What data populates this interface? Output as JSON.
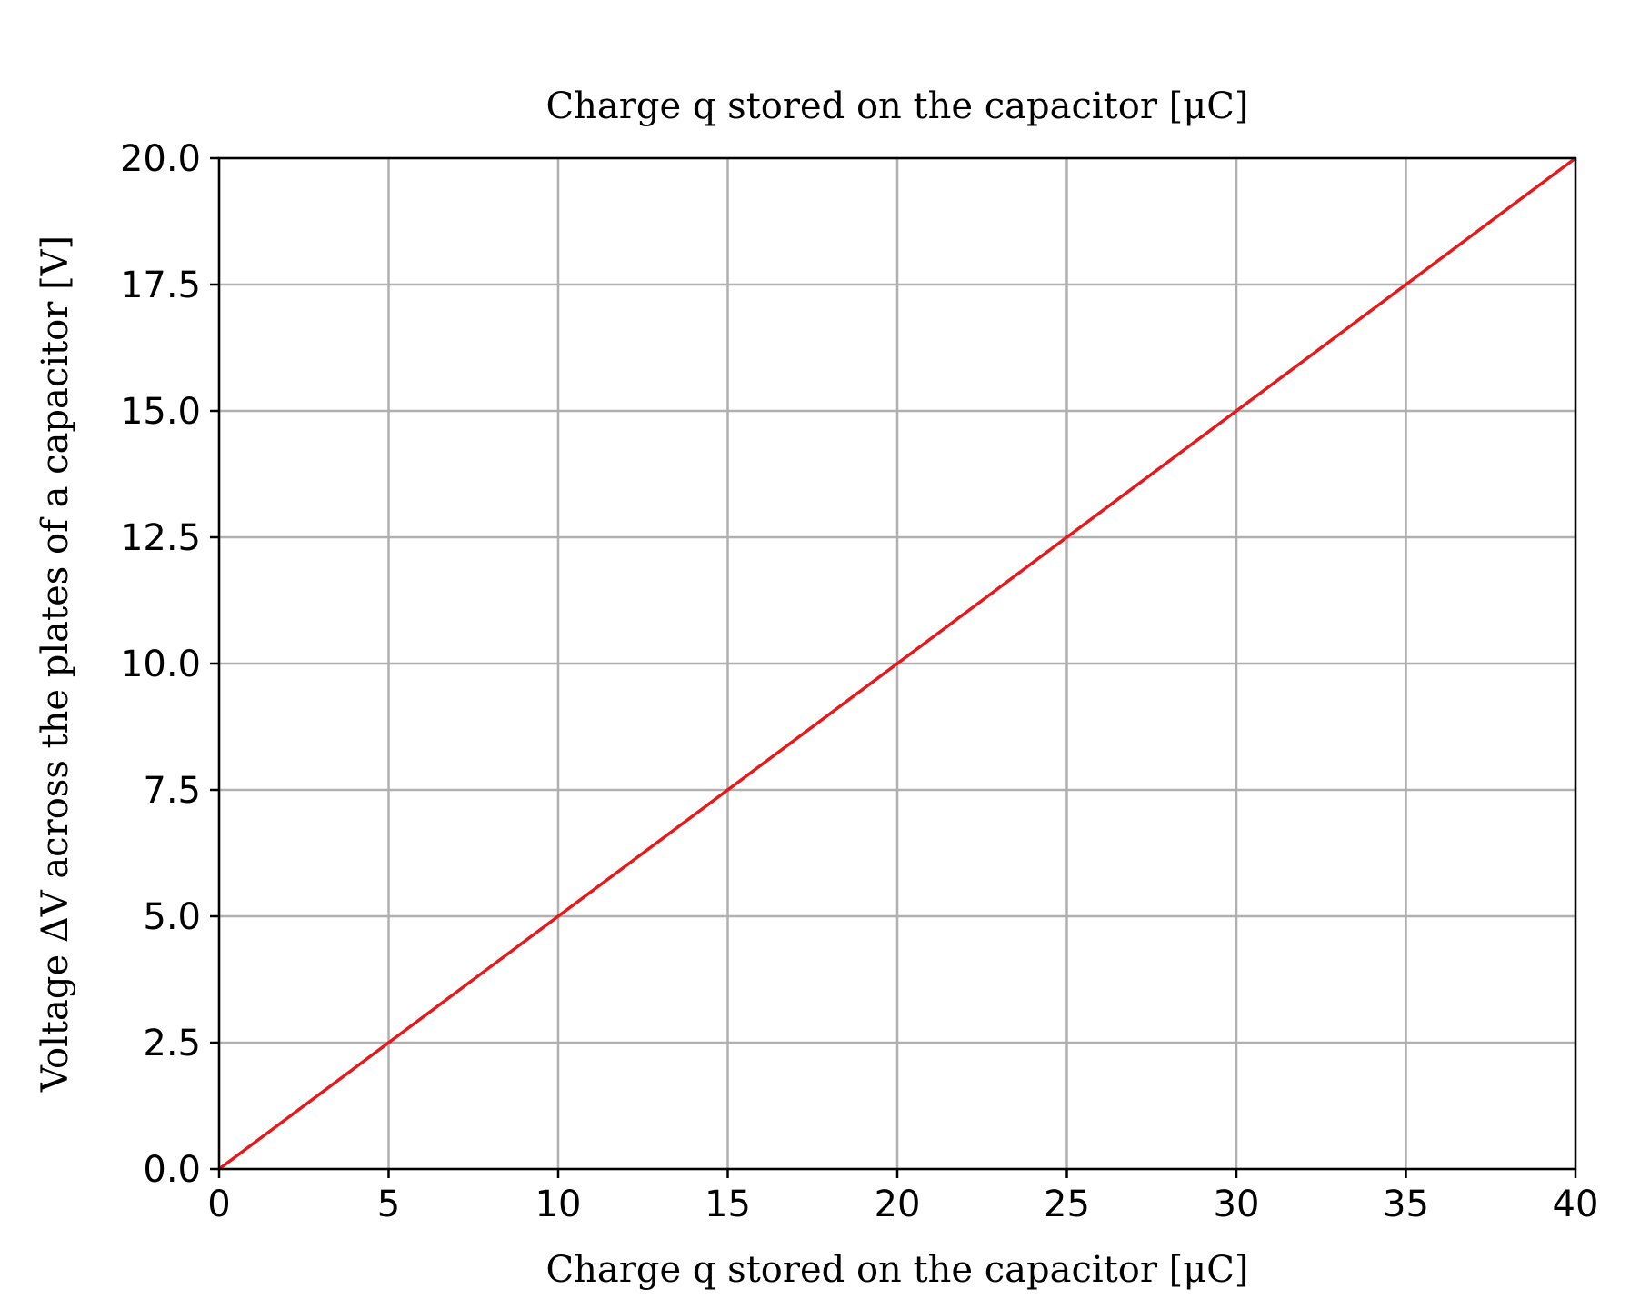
{
  "chart_data": {
    "type": "line",
    "title": "Charge q stored on the capacitor  [μC]",
    "xlabel": "Charge q stored on the capacitor  [μC]",
    "ylabel": "Voltage   ΔV  across the plates of a capacitor  [V]",
    "xlim": [
      0,
      40
    ],
    "ylim": [
      0,
      20
    ],
    "xticks": [
      "0",
      "5",
      "10",
      "15",
      "20",
      "25",
      "30",
      "35",
      "40"
    ],
    "yticks": [
      "0.0",
      "2.5",
      "5.0",
      "7.5",
      "10.0",
      "12.5",
      "15.0",
      "17.5",
      "20.0"
    ],
    "grid": true,
    "legend": "none",
    "series": [
      {
        "color": "#e41a1c",
        "x": [
          0,
          40
        ],
        "y": [
          0,
          20
        ]
      }
    ]
  }
}
